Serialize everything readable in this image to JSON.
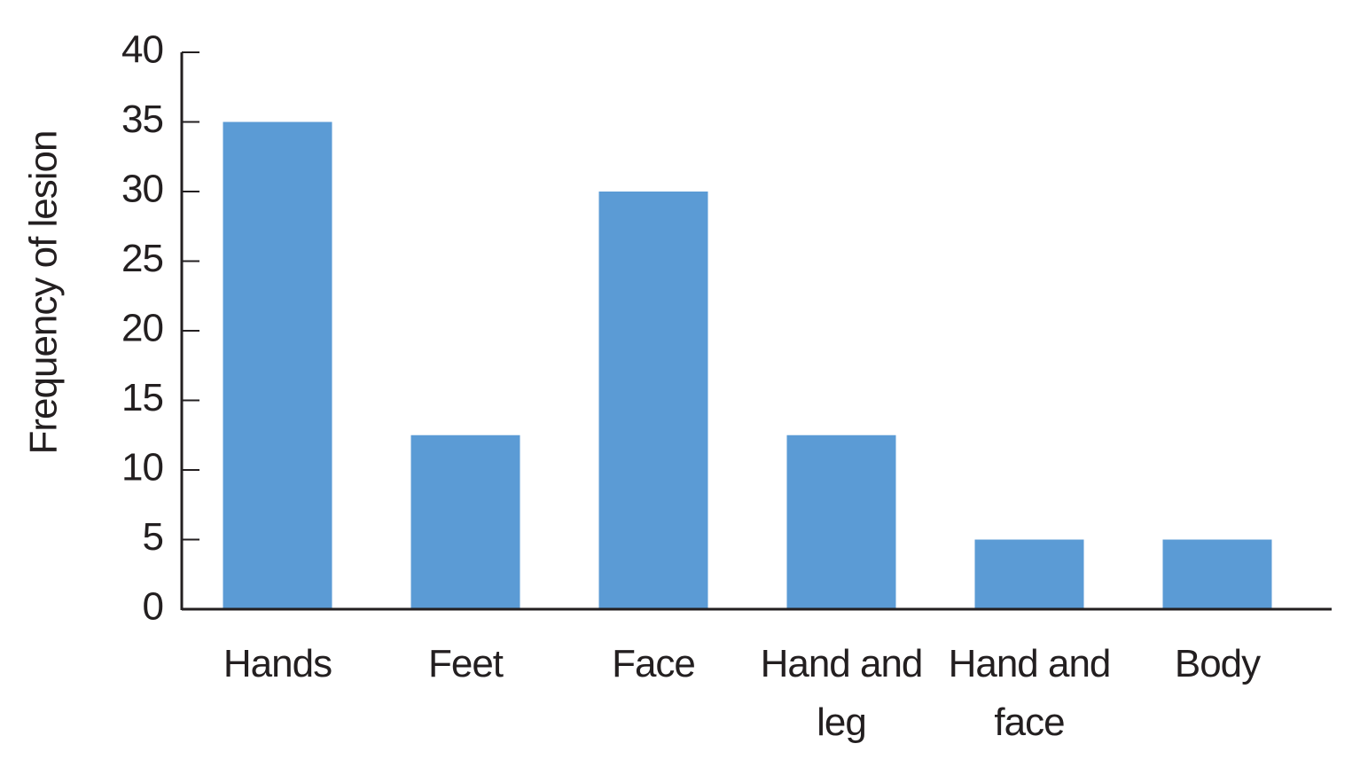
{
  "chart_data": {
    "type": "bar",
    "y_label": "Frequency of lesion",
    "categories": [
      "Hands",
      "Feet",
      "Face",
      "Hand and leg",
      "Hand and face",
      "Body"
    ],
    "values": [
      35,
      12.5,
      30,
      12.5,
      5,
      5
    ],
    "color": "#5b9bd5",
    "ylim": [
      0,
      40
    ],
    "yticks": [
      0,
      5,
      10,
      15,
      20,
      25,
      30,
      35,
      40
    ]
  }
}
